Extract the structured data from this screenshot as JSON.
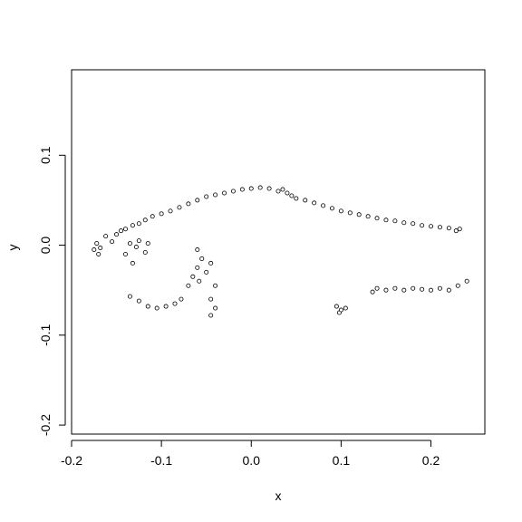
{
  "chart_data": {
    "type": "scatter",
    "title": "",
    "xlabel": "x",
    "ylabel": "y",
    "xlim": [
      -0.2,
      0.26
    ],
    "ylim": [
      -0.21,
      0.195
    ],
    "xticks": [
      -0.2,
      -0.1,
      0.0,
      0.1,
      0.2
    ],
    "xtick_labels": [
      "-0.2",
      "-0.1",
      "0.0",
      "0.1",
      "0.2"
    ],
    "yticks": [
      -0.2,
      -0.1,
      0.0,
      0.1
    ],
    "ytick_labels": [
      "-0.2",
      "-0.1",
      "0.0",
      "0.1"
    ],
    "grid": false,
    "legend": "none",
    "marker": "open-circle",
    "marker_color": "#000000",
    "series": [
      {
        "points": [
          [
            -0.175,
            -0.005
          ],
          [
            -0.172,
            0.002
          ],
          [
            -0.17,
            -0.01
          ],
          [
            -0.168,
            -0.003
          ],
          [
            -0.162,
            0.01
          ],
          [
            -0.155,
            0.004
          ],
          [
            -0.15,
            0.012
          ],
          [
            -0.145,
            0.016
          ],
          [
            -0.14,
            0.018
          ],
          [
            -0.132,
            0.022
          ],
          [
            -0.125,
            0.024
          ],
          [
            -0.118,
            0.028
          ],
          [
            -0.11,
            0.032
          ],
          [
            -0.1,
            0.035
          ],
          [
            -0.09,
            0.038
          ],
          [
            -0.08,
            0.042
          ],
          [
            -0.07,
            0.046
          ],
          [
            -0.06,
            0.05
          ],
          [
            -0.05,
            0.054
          ],
          [
            -0.04,
            0.056
          ],
          [
            -0.03,
            0.058
          ],
          [
            -0.02,
            0.06
          ],
          [
            -0.01,
            0.062
          ],
          [
            0.0,
            0.063
          ],
          [
            0.01,
            0.064
          ],
          [
            0.02,
            0.063
          ],
          [
            0.03,
            0.06
          ],
          [
            0.035,
            0.062
          ],
          [
            0.04,
            0.058
          ],
          [
            0.045,
            0.055
          ],
          [
            0.05,
            0.052
          ],
          [
            0.06,
            0.05
          ],
          [
            0.07,
            0.047
          ],
          [
            0.08,
            0.044
          ],
          [
            0.09,
            0.041
          ],
          [
            0.1,
            0.038
          ],
          [
            0.11,
            0.036
          ],
          [
            0.12,
            0.034
          ],
          [
            0.13,
            0.032
          ],
          [
            0.14,
            0.03
          ],
          [
            0.15,
            0.028
          ],
          [
            0.16,
            0.027
          ],
          [
            0.17,
            0.025
          ],
          [
            0.18,
            0.024
          ],
          [
            0.19,
            0.022
          ],
          [
            0.2,
            0.021
          ],
          [
            0.21,
            0.02
          ],
          [
            0.22,
            0.019
          ],
          [
            0.228,
            0.016
          ],
          [
            0.232,
            0.018
          ],
          [
            -0.135,
            0.002
          ],
          [
            -0.128,
            -0.002
          ],
          [
            -0.14,
            -0.01
          ],
          [
            -0.132,
            -0.02
          ],
          [
            -0.125,
            0.005
          ],
          [
            -0.118,
            -0.008
          ],
          [
            -0.115,
            0.002
          ],
          [
            -0.135,
            -0.057
          ],
          [
            -0.125,
            -0.062
          ],
          [
            -0.115,
            -0.068
          ],
          [
            -0.105,
            -0.07
          ],
          [
            -0.095,
            -0.068
          ],
          [
            -0.085,
            -0.065
          ],
          [
            -0.078,
            -0.06
          ],
          [
            -0.06,
            -0.005
          ],
          [
            -0.055,
            -0.015
          ],
          [
            -0.06,
            -0.025
          ],
          [
            -0.065,
            -0.035
          ],
          [
            -0.07,
            -0.045
          ],
          [
            -0.058,
            -0.04
          ],
          [
            -0.05,
            -0.03
          ],
          [
            -0.045,
            -0.02
          ],
          [
            -0.04,
            -0.045
          ],
          [
            -0.045,
            -0.06
          ],
          [
            -0.04,
            -0.07
          ],
          [
            -0.045,
            -0.078
          ],
          [
            0.095,
            -0.068
          ],
          [
            0.098,
            -0.075
          ],
          [
            0.1,
            -0.072
          ],
          [
            0.105,
            -0.07
          ],
          [
            0.135,
            -0.052
          ],
          [
            0.14,
            -0.048
          ],
          [
            0.15,
            -0.05
          ],
          [
            0.16,
            -0.048
          ],
          [
            0.17,
            -0.05
          ],
          [
            0.18,
            -0.048
          ],
          [
            0.19,
            -0.049
          ],
          [
            0.2,
            -0.05
          ],
          [
            0.21,
            -0.048
          ],
          [
            0.22,
            -0.05
          ],
          [
            0.23,
            -0.045
          ],
          [
            0.24,
            -0.04
          ]
        ]
      }
    ]
  }
}
